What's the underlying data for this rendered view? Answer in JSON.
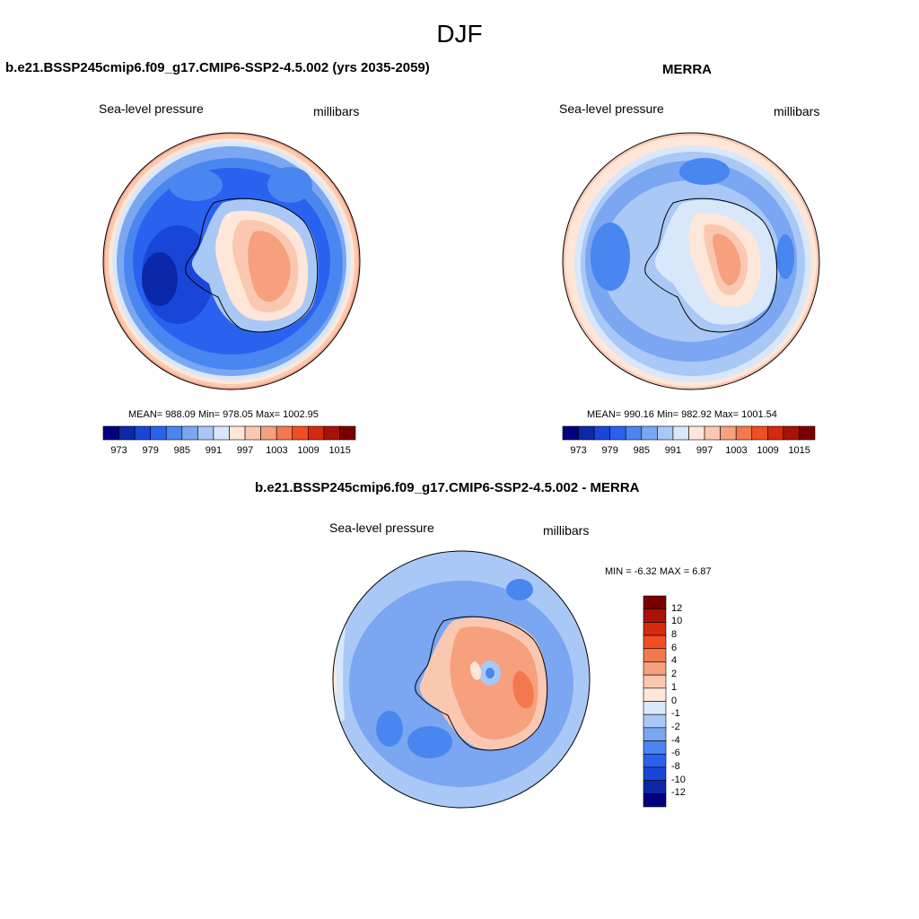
{
  "title": "DJF",
  "colors": {
    "levels": [
      "#000080",
      "#0a28a8",
      "#1a46d8",
      "#2a62f0",
      "#4a86f0",
      "#7aa6f2",
      "#aac8f6",
      "#d8e8fa",
      "#fee6d8",
      "#fac8b0",
      "#f6a07e",
      "#f4784e",
      "#f24e22",
      "#d42a10",
      "#a81208",
      "#7a0000"
    ]
  },
  "panels": {
    "model": {
      "title": "b.e21.BSSP245cmip6.f09_g17.CMIP6-SSP2-4.5.002 (yrs 2035-2059)",
      "variable": "Sea-level pressure",
      "units": "millibars",
      "stats": "MEAN= 988.09  Min= 978.05  Max= 1002.95",
      "colorbar_ticks": [
        "973",
        "979",
        "985",
        "991",
        "997",
        "1003",
        "1009",
        "1015"
      ]
    },
    "obs": {
      "title": "MERRA",
      "variable": "Sea-level pressure",
      "units": "millibars",
      "stats": "MEAN= 990.16  Min= 982.92  Max= 1001.54",
      "colorbar_ticks": [
        "973",
        "979",
        "985",
        "991",
        "997",
        "1003",
        "1009",
        "1015"
      ]
    },
    "diff": {
      "title": "b.e21.BSSP245cmip6.f09_g17.CMIP6-SSP2-4.5.002 - MERRA",
      "variable": "Sea-level pressure",
      "units": "millibars",
      "stats": "MIN =  -6.32 MAX =   6.87",
      "colorbar_ticks": [
        "12",
        "10",
        "8",
        "6",
        "4",
        "2",
        "1",
        "0",
        "-1",
        "-2",
        "-4",
        "-6",
        "-8",
        "-10",
        "-12"
      ]
    }
  }
}
